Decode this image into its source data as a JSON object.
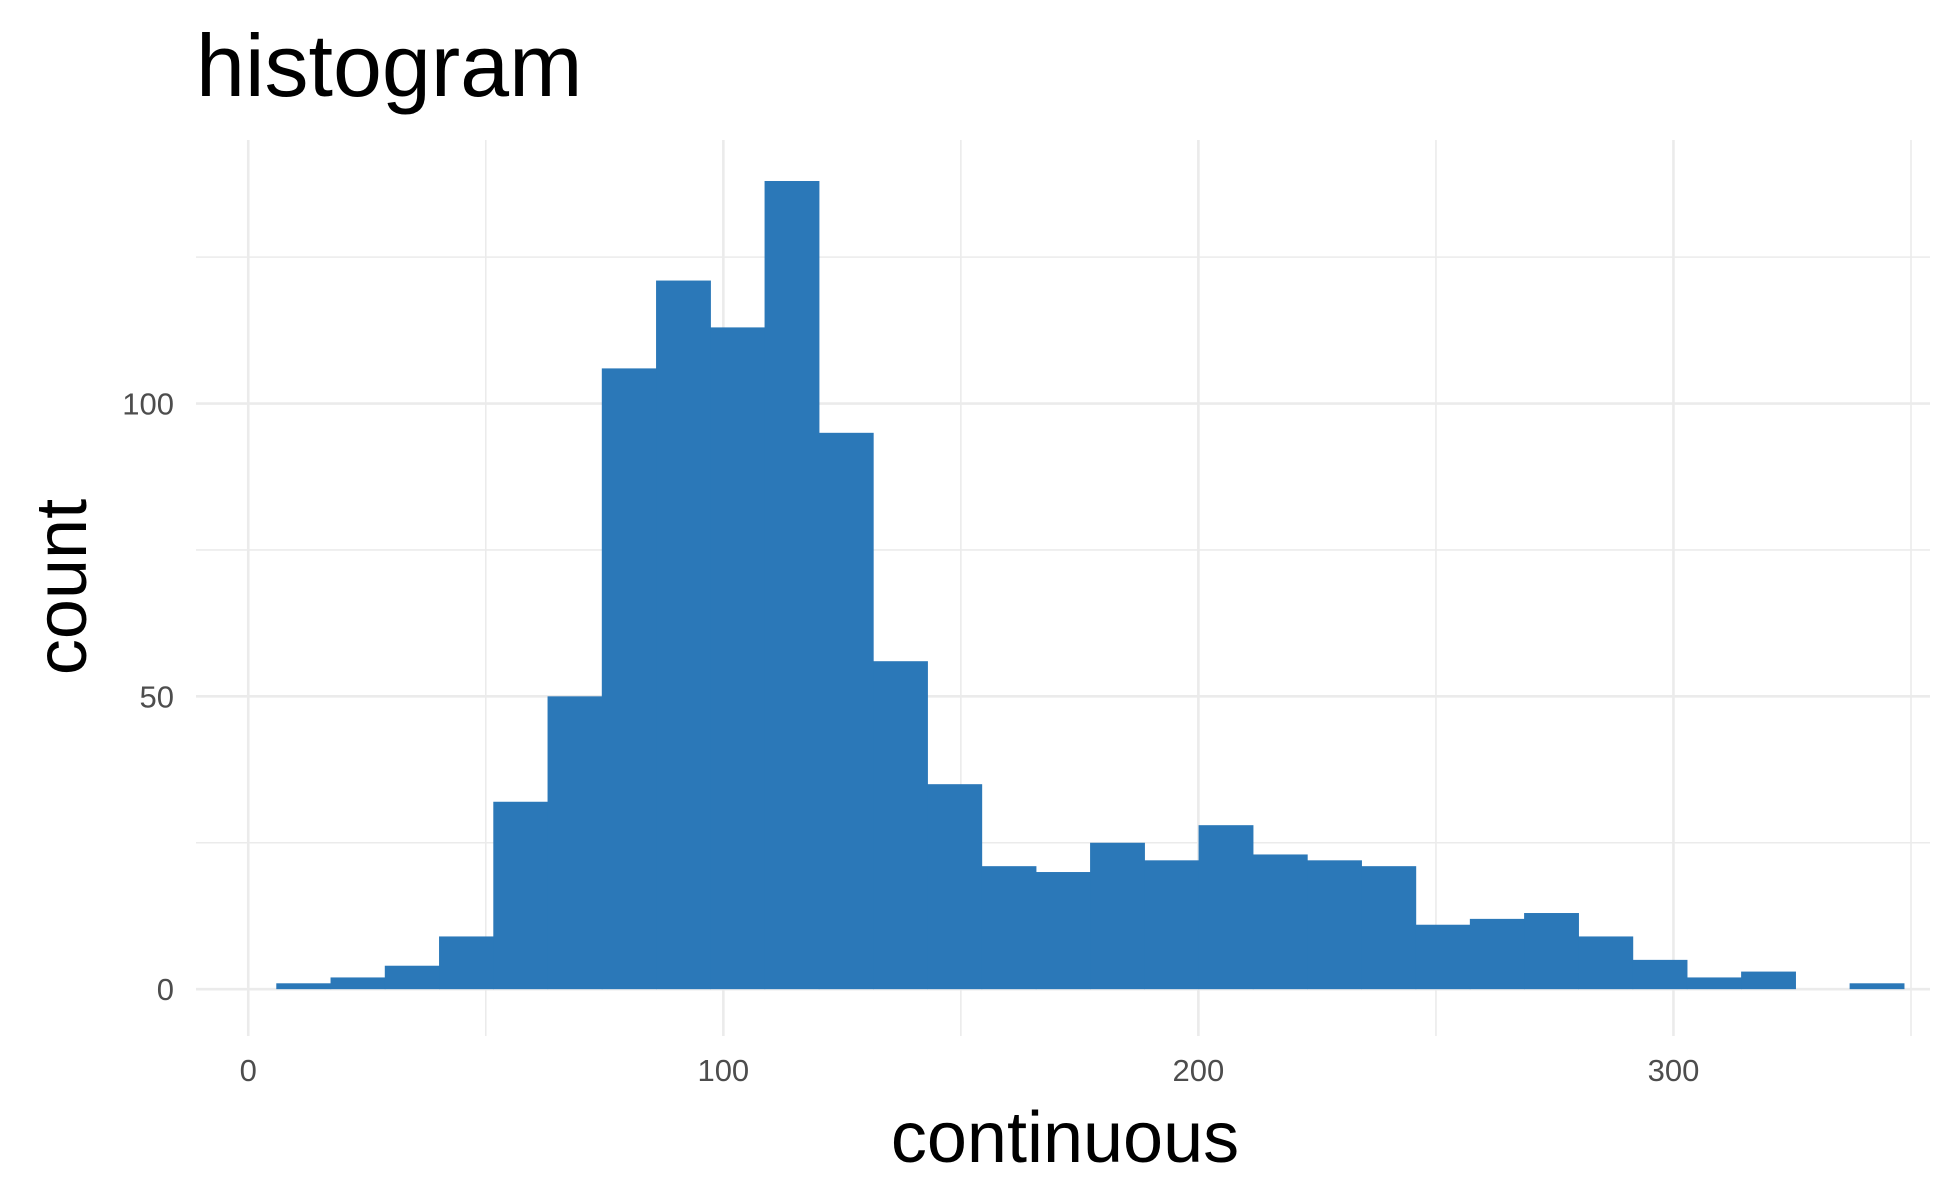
{
  "chart_data": {
    "type": "bar",
    "title": "histogram",
    "xlabel": "continuous",
    "ylabel": "count",
    "xlim": [
      -11,
      354
    ],
    "ylim": [
      -8,
      145
    ],
    "x_ticks": [
      0,
      100,
      200,
      300
    ],
    "x_tick_labels": [
      "0",
      "100",
      "200",
      "300"
    ],
    "y_ticks": [
      0,
      50,
      100
    ],
    "y_tick_labels": [
      "0",
      "50",
      "100"
    ],
    "x_minor_grid": [
      50,
      150,
      250,
      350
    ],
    "y_minor_grid": [
      25,
      75,
      125
    ],
    "grid": true,
    "legend": "none",
    "bar_color": "#2b78b8",
    "bin_width": 11.42,
    "bin_start": 5.9,
    "values": [
      1,
      2,
      4,
      9,
      32,
      50,
      106,
      121,
      113,
      138,
      95,
      56,
      35,
      21,
      20,
      25,
      22,
      28,
      23,
      22,
      21,
      11,
      12,
      13,
      9,
      5,
      2,
      3,
      0,
      1
    ]
  }
}
